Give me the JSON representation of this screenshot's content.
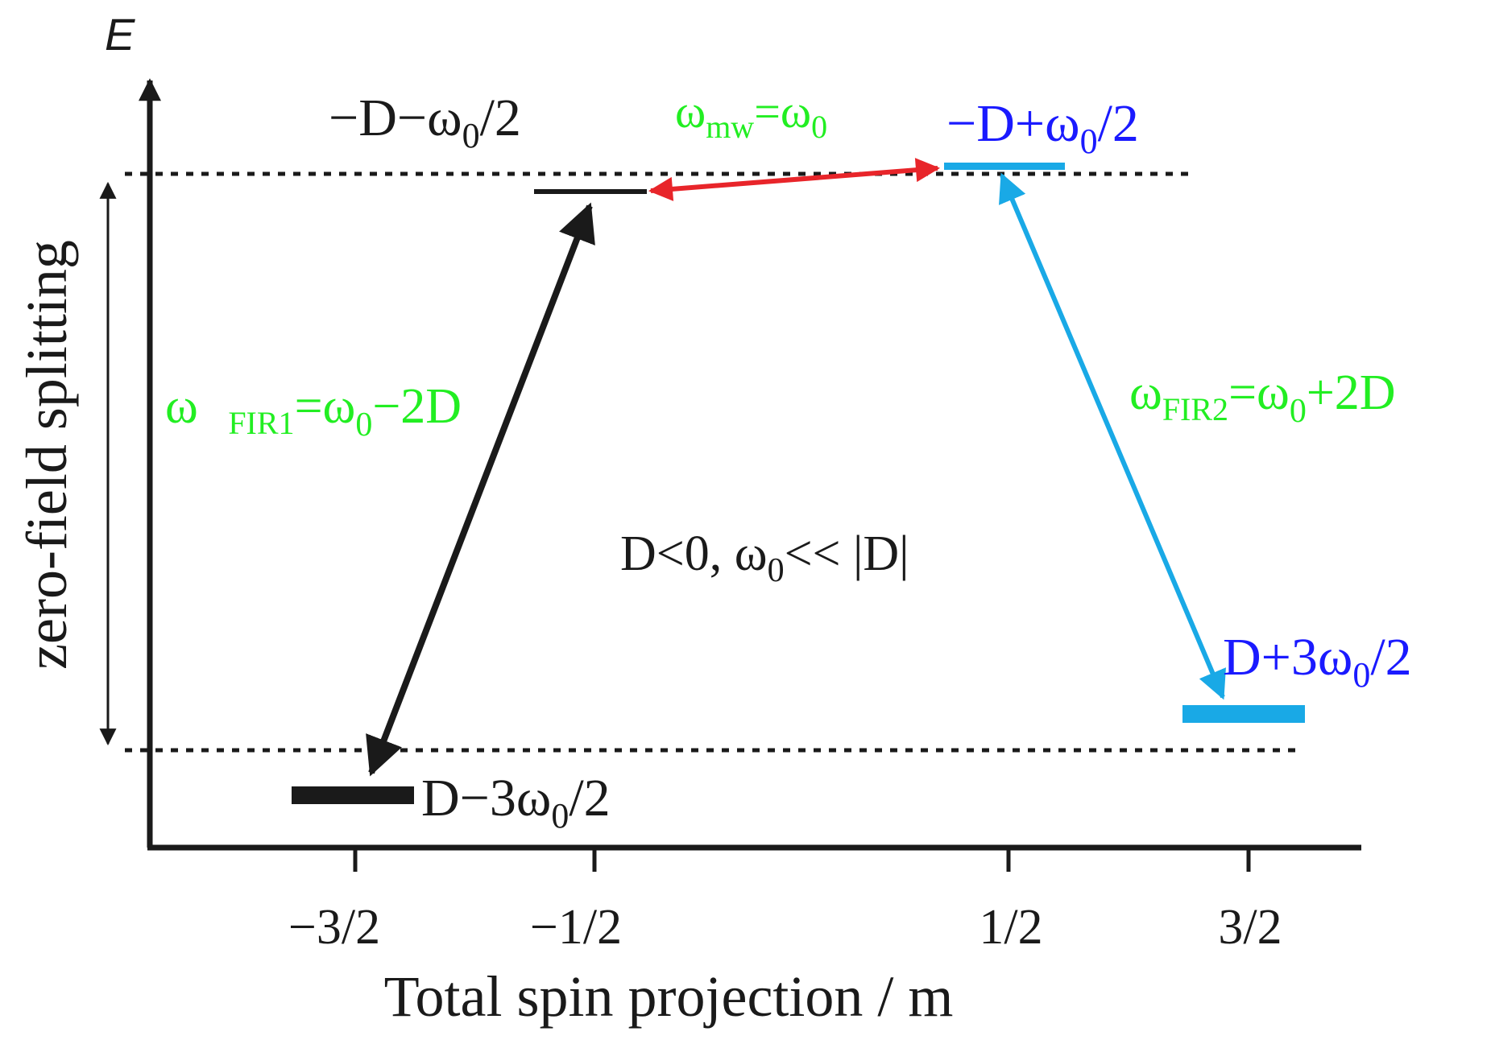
{
  "axis": {
    "y_symbol": "E",
    "y_label": "zero-field splitting",
    "x_label": "Total spin projection / m",
    "ticks": [
      "−3/2",
      "−1/2",
      "1/2",
      "3/2"
    ]
  },
  "levels": {
    "m_minus_half": {
      "prefix": "−D−ω",
      "sub": "0",
      "suffix": "/2"
    },
    "m_plus_half": {
      "prefix": "−D+ω",
      "sub": "0",
      "suffix": "/2"
    },
    "m_plus_three_halves": {
      "prefix": "D+3ω",
      "sub": "0",
      "suffix": "/2"
    },
    "m_minus_three_halves": {
      "prefix": "D−3ω",
      "sub": "0",
      "suffix": "/2"
    }
  },
  "transitions": {
    "mw": {
      "omega": "ω",
      "sub": "mw",
      "rest": "=ω",
      "sub2": "0",
      "rest2": ""
    },
    "fir1": {
      "omega": "ω ",
      "sub": "FIR1",
      "rest": "=ω",
      "sub2": "0",
      "rest2": "−2D"
    },
    "fir2": {
      "omega": "ω",
      "sub": "FIR2",
      "rest": "=ω",
      "sub2": "0",
      "rest2": "+2D"
    }
  },
  "condition": {
    "prefix": "D<0, ω",
    "sub": "0",
    "suffix": "<< |D|"
  },
  "colors": {
    "black": "#1a1a1a",
    "green": "#22ee22",
    "blue": "#1a1aff",
    "cyan": "#19a9e6",
    "red": "#e8252a"
  }
}
